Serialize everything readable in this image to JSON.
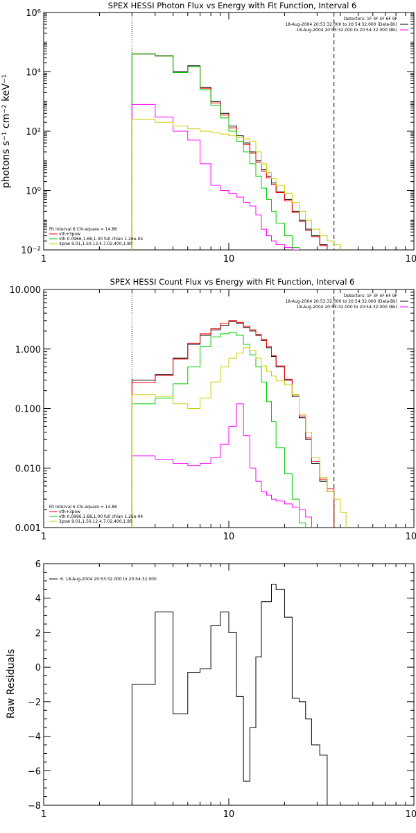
{
  "chart_data": [
    {
      "type": "line",
      "title": "SPEX HESSI Photon Flux vs Energy with Fit Function, Interval 6",
      "ylabel": "photons s$^{-1}$ cm$^{-2}$ keV$^{-1}$",
      "xlabel": "",
      "x_scale": "log",
      "y_scale": "log",
      "xlim": [
        1,
        100
      ],
      "ylim": [
        0.01,
        1000000
      ],
      "xticks": [
        "1",
        "10",
        "100"
      ],
      "yticks": [
        "10⁻²",
        "10⁰",
        "10²",
        "10⁴",
        "10⁶"
      ],
      "vlines": {
        "dotted": 3,
        "dashed": 37
      },
      "header_lines": [
        "Detectors: 1F 3F 4F 6F 9F",
        "18-Aug-2004 20:53:32.000 to 20:54:32.000 (Data-Bk)",
        "18-Aug-2004 20:53:32.000 to 20:54:32.000 (Bk)"
      ],
      "legend_lines": [
        "Fit Interval 6   Chi-square = 14.86",
        "vth+3pow",
        "vth 0.0966,1.68,1.00  full chian 1.26e-04",
        "3pow 9.01,1.50,12.4,7.02,400,1.80"
      ],
      "x_edges": [
        3,
        4,
        5,
        6,
        7,
        8,
        9,
        10,
        11,
        12,
        13,
        14,
        15,
        16,
        17,
        18,
        20,
        22,
        24,
        26,
        28,
        31,
        34,
        37,
        40,
        43,
        46
      ],
      "series": [
        {
          "name": "black",
          "values": [
            40000,
            35000,
            10000,
            16000,
            3000,
            1000,
            400,
            150,
            70,
            40,
            20,
            10,
            5,
            3,
            1.8,
            0.9,
            0.5,
            0.2,
            0.1,
            0.05,
            0.03,
            0.015,
            0.008,
            null,
            null,
            null
          ]
        },
        {
          "name": "red",
          "values": [
            40000,
            34000,
            9500,
            15000,
            2800,
            900,
            350,
            130,
            60,
            35,
            18,
            9,
            4.5,
            2.7,
            1.6,
            0.85,
            0.45,
            0.18,
            0.09,
            0.045,
            0.028,
            0.014,
            0.0075,
            null,
            null,
            null
          ]
        },
        {
          "name": "green",
          "values": [
            40000,
            34000,
            9500,
            15000,
            2500,
            750,
            280,
            100,
            45,
            20,
            8,
            3,
            1.2,
            0.5,
            0.2,
            0.08,
            0.03,
            0.012,
            null,
            null,
            null,
            null,
            null,
            null,
            null,
            null
          ]
        },
        {
          "name": "magenta",
          "values": [
            800,
            300,
            100,
            50,
            8,
            1.5,
            1,
            0.8,
            0.6,
            0.4,
            0.3,
            0.15,
            0.05,
            0.03,
            0.02,
            0.015,
            0.012,
            0.01,
            0.008,
            null,
            null,
            null,
            null,
            null,
            null,
            null
          ]
        },
        {
          "name": "yellow",
          "values": [
            250,
            200,
            150,
            120,
            100,
            90,
            80,
            70,
            60,
            55,
            45,
            20,
            8,
            4,
            2.5,
            1.5,
            0.8,
            0.4,
            0.2,
            0.1,
            0.05,
            0.03,
            0.02,
            0.015,
            0.008,
            null
          ]
        }
      ]
    },
    {
      "type": "line",
      "title": "SPEX HESSI Count Flux vs Energy with Fit Function, Interval 6",
      "xlabel": "",
      "ylabel": "",
      "x_scale": "log",
      "y_scale": "log",
      "xlim": [
        1,
        100
      ],
      "ylim": [
        0.001,
        10
      ],
      "xticks": [
        "1",
        "10",
        "100"
      ],
      "yticks": [
        "0.001",
        "0.010",
        "0.100",
        "1.000",
        "10.000"
      ],
      "vlines": {
        "dotted": 3,
        "dashed": 37
      },
      "header_lines": [
        "Detectors: 1F 3F 4F 6F 9F",
        "18-Aug-2004 20:53:32.000 to 20:54:32.000 (Data-Bk)",
        "18-Aug-2004 20:53:32.000 to 20:54:32.000 (Bk)"
      ],
      "legend_lines": [
        "Fit Interval 6   Chi-square = 14.86",
        "vth+3pow",
        "vth 0.0966,1.68,1.00  full chian 1.26e-04",
        "3pow 9.01,1.50,12.4,7.02,400,1.80"
      ],
      "x_edges": [
        3,
        4,
        5,
        6,
        7,
        8,
        9,
        10,
        11,
        12,
        13,
        14,
        15,
        16,
        17,
        18,
        20,
        22,
        24,
        26,
        28,
        31,
        34,
        37,
        40,
        43,
        46
      ],
      "series": [
        {
          "name": "black",
          "values": [
            0.3,
            0.37,
            0.7,
            1.2,
            1.7,
            2.1,
            2.5,
            2.9,
            2.7,
            2.3,
            2.0,
            1.7,
            1.4,
            1.05,
            0.75,
            0.5,
            0.3,
            0.16,
            0.07,
            0.03,
            0.012,
            0.006,
            0.004,
            null,
            null,
            null
          ]
        },
        {
          "name": "red",
          "values": [
            0.27,
            0.36,
            0.68,
            1.25,
            1.8,
            2.2,
            2.7,
            3.0,
            2.8,
            2.4,
            2.1,
            1.75,
            1.45,
            1.1,
            0.78,
            0.52,
            0.31,
            0.17,
            0.075,
            0.032,
            0.013,
            0.0065,
            0.0045,
            null,
            null,
            null
          ]
        },
        {
          "name": "green",
          "values": [
            0.12,
            0.15,
            0.26,
            0.5,
            1.1,
            1.6,
            1.8,
            1.9,
            1.7,
            1.2,
            0.8,
            0.5,
            0.28,
            0.13,
            0.06,
            0.022,
            0.008,
            0.003,
            0.0012,
            null,
            null,
            null,
            null,
            null,
            null,
            null
          ]
        },
        {
          "name": "magenta",
          "values": [
            0.016,
            0.014,
            0.012,
            0.011,
            0.012,
            0.015,
            0.025,
            0.05,
            0.12,
            0.035,
            0.01,
            0.006,
            0.004,
            0.0035,
            0.003,
            0.0028,
            0.0025,
            0.0022,
            0.002,
            0.0015,
            null,
            null,
            null,
            null,
            null,
            null
          ]
        },
        {
          "name": "yellow",
          "values": [
            0.17,
            0.16,
            0.12,
            0.1,
            0.15,
            0.28,
            0.5,
            0.7,
            0.85,
            1.05,
            0.95,
            0.7,
            0.52,
            0.42,
            0.35,
            0.29,
            0.25,
            0.17,
            0.08,
            0.04,
            0.015,
            0.007,
            0.004,
            0.003,
            0.0018,
            null
          ]
        }
      ]
    },
    {
      "type": "line",
      "title": "",
      "xlabel": "",
      "ylabel": "Raw Residuals",
      "x_scale": "log",
      "y_scale": "linear",
      "xlim": [
        1,
        100
      ],
      "ylim": [
        -8,
        6
      ],
      "xticks": [
        "1",
        "10",
        "100"
      ],
      "yticks": [
        "−8",
        "−6",
        "−4",
        "−2",
        "0",
        "2",
        "4",
        "6"
      ],
      "legend_lines": [
        "6. 18-Aug-2004 20:53:32.000 to 20:54:32.000"
      ],
      "x_edges": [
        3,
        3.5,
        4,
        4.5,
        5,
        5.5,
        6,
        6.5,
        7,
        7.5,
        8,
        8.5,
        9,
        9.5,
        10,
        11,
        12,
        13,
        14,
        15,
        16,
        17,
        18,
        20,
        22,
        24,
        26,
        28,
        31,
        34,
        37
      ],
      "series": [
        {
          "name": "residuals",
          "values": [
            -1.0,
            -1.0,
            3.2,
            3.2,
            -2.7,
            -2.7,
            -0.3,
            -0.3,
            -0.1,
            -0.1,
            2.4,
            2.4,
            3.2,
            3.2,
            2.0,
            -1.7,
            -6.6,
            -3.5,
            0.6,
            3.8,
            3.8,
            4.8,
            4.5,
            2.9,
            -1.8,
            -2.0,
            -3.0,
            -4.5,
            -5.1,
            -8.0
          ]
        }
      ]
    }
  ],
  "colors": {
    "black": "#000000",
    "red": "#ff0000",
    "green": "#00cc00",
    "magenta": "#ff00ff",
    "yellow": "#cccc00"
  }
}
